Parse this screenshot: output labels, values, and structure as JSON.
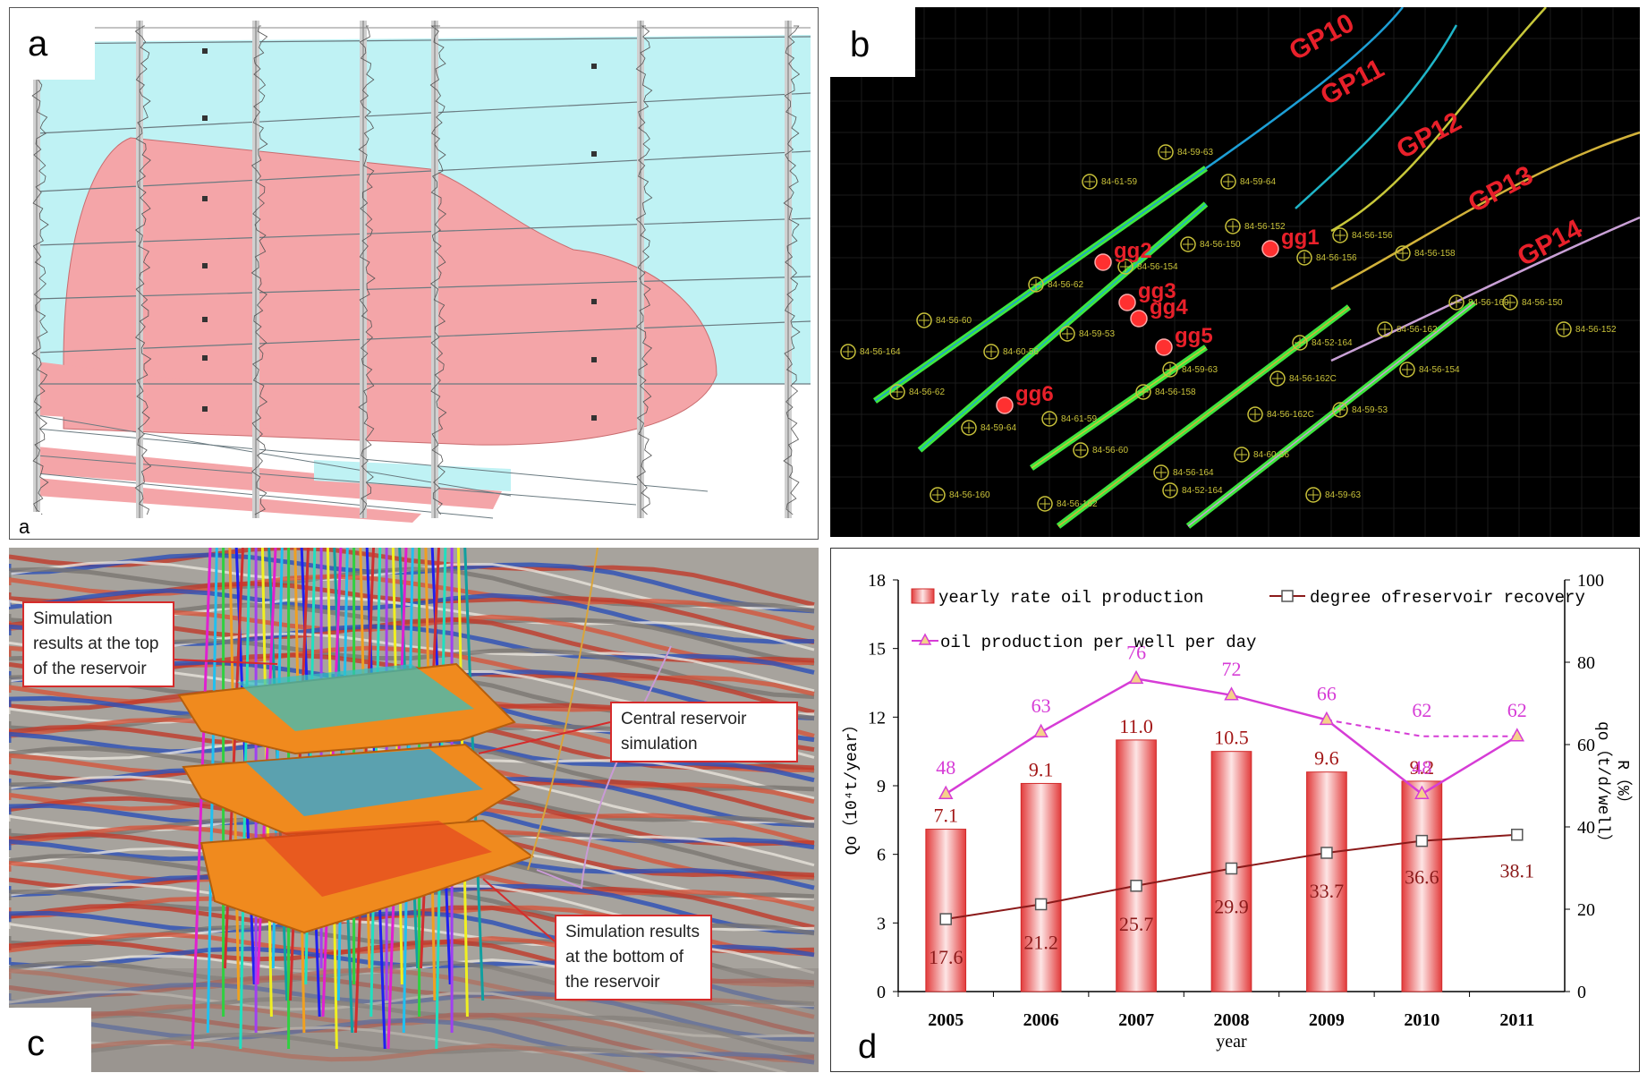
{
  "panel_a": {
    "label": "a"
  },
  "panel_b": {
    "label": "b",
    "horizontal_wells": [
      {
        "name": "GP10",
        "color": "#1d9fd6"
      },
      {
        "name": "GP11",
        "color": "#1fb5c8"
      },
      {
        "name": "GP12",
        "color": "#c8c83a"
      },
      {
        "name": "GP13",
        "color": "#d2b23a"
      },
      {
        "name": "GP14",
        "color": "#c9a0d6"
      }
    ],
    "sample_wells": [
      "gg1",
      "gg2",
      "gg3",
      "gg4",
      "gg5",
      "gg6"
    ],
    "well_labels": [
      "84-59-63",
      "84-61-59",
      "84-59-64",
      "84-56-62",
      "84-56-60",
      "84-56-164",
      "84-60-56",
      "84-59-53",
      "84-56-154",
      "84-56-150",
      "84-56-152",
      "84-56-156",
      "84-56-158",
      "84-56-160",
      "84-56-162",
      "84-52-164",
      "84-56-162C"
    ]
  },
  "panel_c": {
    "label": "c",
    "callouts": {
      "top": "Simulation results at the top of the reservoir",
      "central": "Central reservoir simulation",
      "bottom": "Simulation results at the bottom of the reservoir"
    }
  },
  "panel_d": {
    "label": "d"
  },
  "chart_data": {
    "type": "bar",
    "categories": [
      "2005",
      "2006",
      "2007",
      "2008",
      "2009",
      "2010",
      "2011"
    ],
    "xlabel": "year",
    "ylabel_left": "Qo（10⁴t/year）",
    "ylabel_right_1": "R（%）",
    "ylabel_right_2": "qo（t/d/well）",
    "ylim_left": [
      0,
      18
    ],
    "yticks_left": [
      0,
      3,
      6,
      9,
      12,
      15,
      18
    ],
    "ylim_right": [
      0,
      100
    ],
    "yticks_right": [
      0,
      20,
      40,
      60,
      80,
      100
    ],
    "legend": {
      "bar": "yearly rate oil production",
      "recovery": "degree ofreservoir recovery",
      "per_well": "oil production per well per day"
    },
    "series": [
      {
        "name": "yearly rate oil production",
        "axis": "left",
        "kind": "bar",
        "color": "#e04848",
        "values": [
          7.1,
          9.1,
          11.0,
          10.5,
          9.6,
          9.2,
          null
        ],
        "labels": [
          "7.1",
          "9.1",
          "11.0",
          "10.5",
          "9.6",
          "9.2",
          ""
        ]
      },
      {
        "name": "degree ofreservoir recovery",
        "axis": "right",
        "kind": "line",
        "color": "#8b1a1a",
        "values": [
          17.6,
          21.2,
          25.7,
          29.9,
          33.7,
          36.6,
          38.1
        ],
        "labels": [
          "17.6",
          "21.2",
          "25.7",
          "29.9",
          "33.7",
          "36.6",
          "38.1"
        ]
      },
      {
        "name": "oil production per well per day",
        "axis": "right",
        "kind": "line",
        "color": "#d63cd6",
        "values": [
          48,
          63,
          76,
          72,
          66,
          48,
          62
        ],
        "labels": [
          "48",
          "63",
          "76",
          "72",
          "66",
          "48",
          "62"
        ],
        "dashed_branch": {
          "x": [
            "2009",
            "2010",
            "2011"
          ],
          "values": [
            66,
            62,
            62
          ],
          "labels": [
            "",
            "62",
            ""
          ]
        }
      }
    ]
  }
}
